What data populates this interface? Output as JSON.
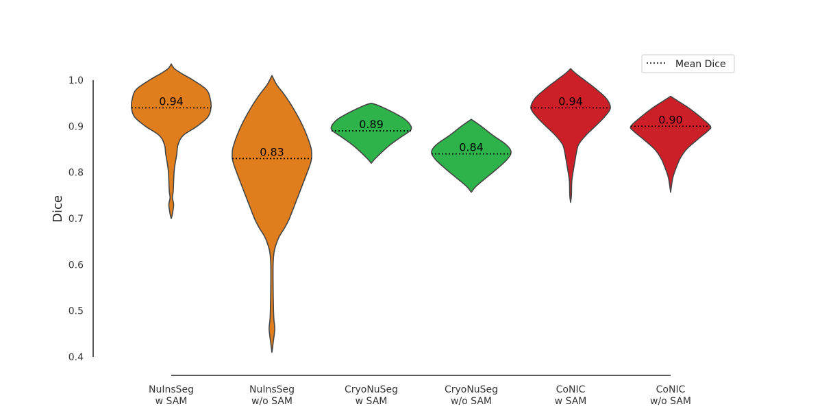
{
  "chart_data": {
    "type": "violin",
    "title": "",
    "xlabel": "",
    "ylabel": "Dice",
    "ylim": [
      0.4,
      1.0
    ],
    "yticks": [
      0.4,
      0.5,
      0.6,
      0.7,
      0.8,
      0.9,
      1.0
    ],
    "grid": false,
    "legend": {
      "entries": [
        "Mean Dice"
      ],
      "placement": "top-right",
      "line_style": "dotted"
    },
    "categories": [
      {
        "line1": "NuInsSeg",
        "line2": "w SAM",
        "color": "#E07E1E",
        "mean": 0.94,
        "mean_label": "0.94",
        "min": 0.7,
        "max": 1.035,
        "profile": [
          [
            0.7,
            0.0
          ],
          [
            0.71,
            0.03
          ],
          [
            0.73,
            0.06
          ],
          [
            0.745,
            0.03
          ],
          [
            0.76,
            0.05
          ],
          [
            0.8,
            0.07
          ],
          [
            0.82,
            0.1
          ],
          [
            0.84,
            0.14
          ],
          [
            0.86,
            0.17
          ],
          [
            0.88,
            0.3
          ],
          [
            0.9,
            0.65
          ],
          [
            0.92,
            0.92
          ],
          [
            0.94,
            1.0
          ],
          [
            0.96,
            0.98
          ],
          [
            0.98,
            0.88
          ],
          [
            1.0,
            0.55
          ],
          [
            1.015,
            0.25
          ],
          [
            1.025,
            0.08
          ],
          [
            1.035,
            0.0
          ]
        ]
      },
      {
        "line1": "NuInsSeg",
        "line2": "w/o SAM",
        "color": "#E07E1E",
        "mean": 0.83,
        "mean_label": "0.83",
        "min": 0.41,
        "max": 1.01,
        "profile": [
          [
            0.41,
            0.0
          ],
          [
            0.43,
            0.03
          ],
          [
            0.46,
            0.07
          ],
          [
            0.48,
            0.05
          ],
          [
            0.5,
            0.04
          ],
          [
            0.55,
            0.03
          ],
          [
            0.6,
            0.03
          ],
          [
            0.625,
            0.05
          ],
          [
            0.64,
            0.09
          ],
          [
            0.66,
            0.18
          ],
          [
            0.68,
            0.32
          ],
          [
            0.7,
            0.44
          ],
          [
            0.74,
            0.62
          ],
          [
            0.78,
            0.8
          ],
          [
            0.82,
            0.97
          ],
          [
            0.84,
            1.0
          ],
          [
            0.86,
            0.96
          ],
          [
            0.9,
            0.78
          ],
          [
            0.94,
            0.53
          ],
          [
            0.97,
            0.3
          ],
          [
            0.99,
            0.12
          ],
          [
            1.01,
            0.0
          ]
        ]
      },
      {
        "line1": "CryoNuSeg",
        "line2": "w SAM",
        "color": "#2DB34A",
        "mean": 0.89,
        "mean_label": "0.89",
        "min": 0.82,
        "max": 0.95,
        "profile": [
          [
            0.82,
            0.0
          ],
          [
            0.83,
            0.1
          ],
          [
            0.845,
            0.28
          ],
          [
            0.86,
            0.48
          ],
          [
            0.875,
            0.72
          ],
          [
            0.89,
            0.97
          ],
          [
            0.9,
            1.0
          ],
          [
            0.915,
            0.85
          ],
          [
            0.93,
            0.55
          ],
          [
            0.945,
            0.18
          ],
          [
            0.95,
            0.0
          ]
        ]
      },
      {
        "line1": "CryoNuSeg",
        "line2": "w/o SAM",
        "color": "#2DB34A",
        "mean": 0.84,
        "mean_label": "0.84",
        "min": 0.757,
        "max": 0.915,
        "profile": [
          [
            0.757,
            0.0
          ],
          [
            0.77,
            0.12
          ],
          [
            0.79,
            0.4
          ],
          [
            0.81,
            0.68
          ],
          [
            0.83,
            0.92
          ],
          [
            0.845,
            1.0
          ],
          [
            0.86,
            0.88
          ],
          [
            0.88,
            0.55
          ],
          [
            0.9,
            0.25
          ],
          [
            0.915,
            0.0
          ]
        ]
      },
      {
        "line1": "CoNIC",
        "line2": "w SAM",
        "color": "#CC1F28",
        "mean": 0.94,
        "mean_label": "0.94",
        "min": 0.735,
        "max": 1.025,
        "profile": [
          [
            0.735,
            0.0
          ],
          [
            0.75,
            0.02
          ],
          [
            0.78,
            0.03
          ],
          [
            0.8,
            0.06
          ],
          [
            0.82,
            0.1
          ],
          [
            0.84,
            0.14
          ],
          [
            0.86,
            0.2
          ],
          [
            0.88,
            0.38
          ],
          [
            0.9,
            0.62
          ],
          [
            0.92,
            0.85
          ],
          [
            0.94,
            1.0
          ],
          [
            0.96,
            0.9
          ],
          [
            0.98,
            0.65
          ],
          [
            1.0,
            0.35
          ],
          [
            1.015,
            0.12
          ],
          [
            1.025,
            0.0
          ]
        ]
      },
      {
        "line1": "CoNIC",
        "line2": "w/o SAM",
        "color": "#CC1F28",
        "mean": 0.9,
        "mean_label": "0.90",
        "min": 0.757,
        "max": 0.965,
        "profile": [
          [
            0.757,
            0.0
          ],
          [
            0.77,
            0.02
          ],
          [
            0.79,
            0.06
          ],
          [
            0.81,
            0.14
          ],
          [
            0.83,
            0.24
          ],
          [
            0.85,
            0.4
          ],
          [
            0.87,
            0.66
          ],
          [
            0.89,
            0.94
          ],
          [
            0.9,
            1.0
          ],
          [
            0.92,
            0.75
          ],
          [
            0.94,
            0.45
          ],
          [
            0.955,
            0.18
          ],
          [
            0.965,
            0.0
          ]
        ]
      }
    ]
  }
}
